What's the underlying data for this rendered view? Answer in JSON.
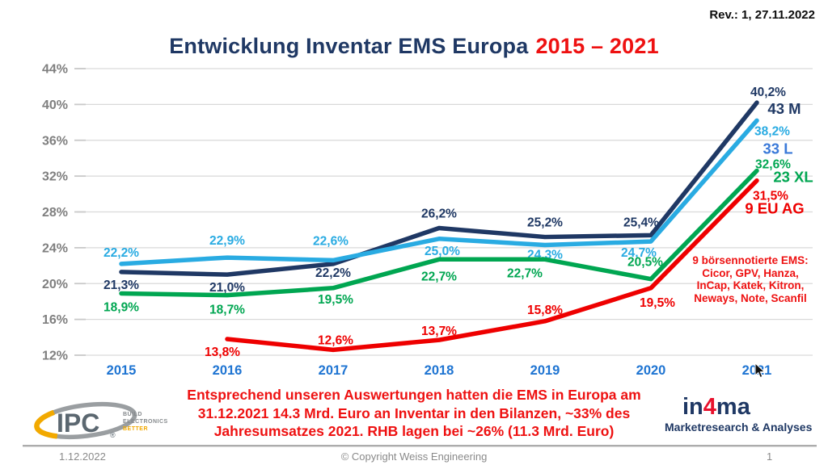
{
  "slide": {
    "revision": "Rev.: 1, 27.11.2022",
    "title_main": "Entwicklung Inventar EMS Europa",
    "title_range": "2015 – 2021",
    "footer": {
      "date": "1.12.2022",
      "copyright": "© Copyright Weiss Engineering",
      "page": "1"
    }
  },
  "annotation": {
    "lines": [
      "9 börsennotierte EMS:",
      "Cicor, GPV, Hanza,",
      "InCap, Katek, Kitron,",
      "Neways, Note, Scanfil"
    ]
  },
  "note": {
    "lines": [
      "Entsprechend unseren Auswertungen hatten die EMS in Europa am",
      "31.12.2021 14.3 Mrd. Euro an Inventar in den Bilanzen, ~33% des",
      "Jahresumsatzes 2021. RHB lagen bei ~26% (11.3 Mrd. Euro)"
    ]
  },
  "logos": {
    "ipc": {
      "name": "IPC",
      "reg": "®",
      "tagline": [
        "BUILD",
        "ELECTRONICS",
        "BETTER"
      ]
    },
    "in4ma": {
      "p1": "in",
      "p2": "4",
      "p3": "ma",
      "subtitle": "Marketresearch & Analyses"
    }
  },
  "chart_data": {
    "type": "line",
    "title": "Entwicklung Inventar EMS Europa 2015 – 2021",
    "xlabel": "",
    "ylabel": "",
    "x": [
      2015,
      2016,
      2017,
      2018,
      2019,
      2020,
      2021
    ],
    "ylim": [
      12,
      44
    ],
    "ytick_step": 4,
    "ytick_suffix": "%",
    "grid": true,
    "legend_position": "right-end-of-line",
    "axis_colors": {
      "ytick": "#7F7F7F",
      "xtick": "#1E74D2",
      "grid": "#D9D9D9",
      "tickmark": "#C9C9C9"
    },
    "series": [
      {
        "name": "43 M",
        "color": "#1F3864",
        "values": [
          21.3,
          21.0,
          22.2,
          26.2,
          25.2,
          25.4,
          40.2
        ]
      },
      {
        "name": "33 L",
        "color": "#29ABE2",
        "name_color": "#3B7AD9",
        "values": [
          22.2,
          22.9,
          22.6,
          25.0,
          24.3,
          24.7,
          38.2
        ]
      },
      {
        "name": "23 XL",
        "color": "#00A651",
        "values": [
          18.9,
          18.7,
          19.5,
          22.7,
          22.7,
          20.5,
          32.6
        ]
      },
      {
        "name": "9 EU AG",
        "color": "#EE0000",
        "values": [
          null,
          13.8,
          12.6,
          13.7,
          15.8,
          19.5,
          31.5
        ]
      }
    ]
  }
}
